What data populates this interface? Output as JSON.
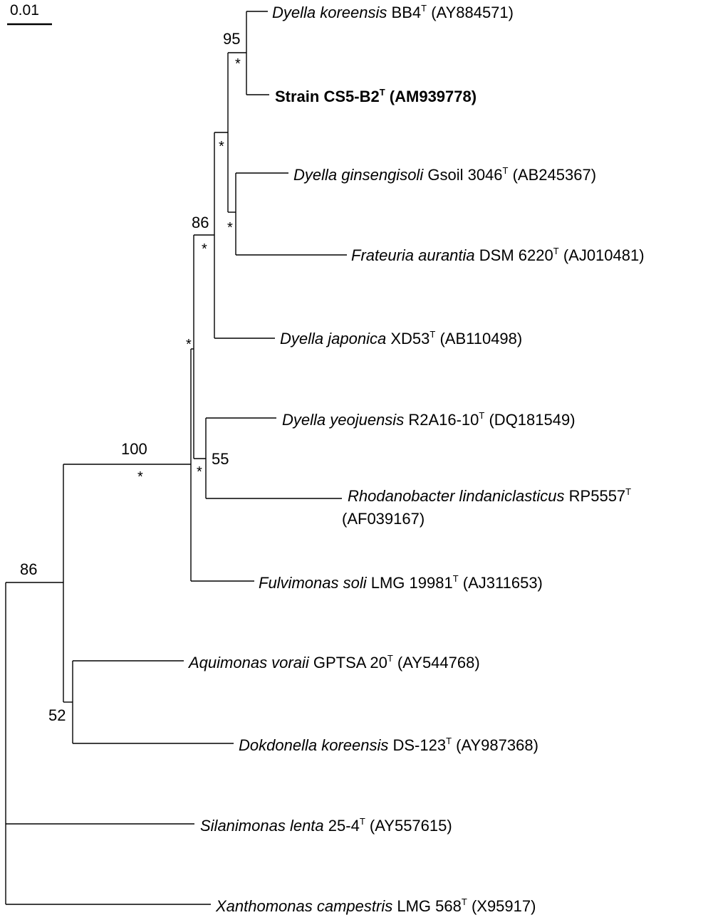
{
  "scale_bar": {
    "label": "0.01"
  },
  "taxa": [
    {
      "species": "Dyella koreensis",
      "strain": "BB4",
      "sup": "T",
      "accession": "(AY884571)",
      "bold": false
    },
    {
      "species": "",
      "strain": "Strain CS5-B2",
      "sup": "T",
      "accession": "(AM939778)",
      "bold": true
    },
    {
      "species": "Dyella ginsengisoli",
      "strain": "Gsoil 3046",
      "sup": "T",
      "accession": "(AB245367)",
      "bold": false
    },
    {
      "species": "Frateuria aurantia",
      "strain": "DSM 6220",
      "sup": "T",
      "accession": "(AJ010481)",
      "bold": false
    },
    {
      "species": "Dyella japonica",
      "strain": "XD53",
      "sup": "T",
      "accession": "(AB110498)",
      "bold": false
    },
    {
      "species": "Dyella yeojuensis",
      "strain": "R2A16-10",
      "sup": "T",
      "accession": "(DQ181549)",
      "bold": false
    },
    {
      "species": "Rhodanobacter lindaniclasticus",
      "strain": "RP5557",
      "sup": "T",
      "accession": "(AF039167)",
      "bold": false
    },
    {
      "species": "Fulvimonas soli",
      "strain": "LMG 19981",
      "sup": "T",
      "accession": "(AJ311653)",
      "bold": false
    },
    {
      "species": "Aquimonas voraii",
      "strain": "GPTSA 20",
      "sup": "T",
      "accession": "(AY544768)",
      "bold": false
    },
    {
      "species": "Dokdonella koreensis",
      "strain": "DS-123",
      "sup": "T",
      "accession": "(AY987368)",
      "bold": false
    },
    {
      "species": "Silanimonas lenta",
      "strain": "25-4",
      "sup": "T",
      "accession": "(AY557615)",
      "bold": false
    },
    {
      "species": "Xanthomonas campestris",
      "strain": "LMG 568",
      "sup": "T",
      "accession": "(X95917)",
      "bold": false
    }
  ],
  "bootstrap": [
    "95",
    "86",
    "100",
    "55",
    "86",
    "52"
  ],
  "marker": "*"
}
